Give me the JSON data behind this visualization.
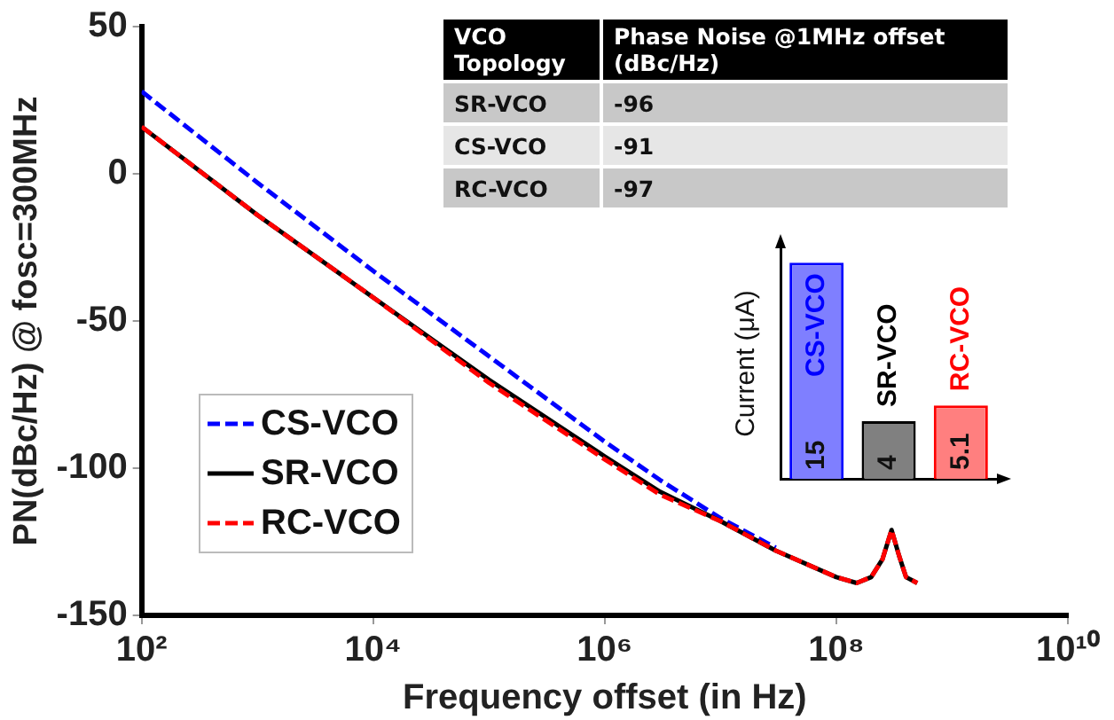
{
  "chart_data": [
    {
      "type": "line",
      "xlabel": "Frequency offset (in Hz)",
      "ylabel": "PN(dBc/Hz) @ fosc=300MHz",
      "log": "x",
      "xlim": [
        100,
        10000000000
      ],
      "xticks": [
        {
          "value": 100,
          "label": "10²"
        },
        {
          "value": 10000,
          "label": "10⁴"
        },
        {
          "value": 1000000,
          "label": "10⁶"
        },
        {
          "value": 100000000,
          "label": "10⁸"
        },
        {
          "value": 10000000000,
          "label": "10¹⁰"
        }
      ],
      "ylim": [
        -150,
        50
      ],
      "yticks": [
        -150,
        -100,
        -50,
        0,
        50
      ],
      "grid": false,
      "legend": "bottom left",
      "series": [
        {
          "name": "CS-VCO",
          "color": "#0000ff",
          "line_style": "dashed",
          "x": [
            100,
            1000,
            10000,
            100000,
            1000000,
            3000000,
            10000000,
            30000000
          ],
          "values": [
            28,
            -3,
            -33,
            -62,
            -91,
            -104,
            -117,
            -127
          ]
        },
        {
          "name": "SR-VCO",
          "color": "#000000",
          "line_style": "solid",
          "x": [
            100,
            1000,
            10000,
            100000,
            1000000,
            3000000,
            10000000,
            30000000,
            100000000,
            150000000,
            200000000,
            250000000,
            300000000,
            350000000,
            400000000,
            500000000
          ],
          "values": [
            16,
            -14,
            -42,
            -70,
            -96,
            -108,
            -118,
            -128,
            -137,
            -139,
            -137,
            -131,
            -121,
            -130,
            -137,
            -139
          ]
        },
        {
          "name": "RC-VCO",
          "color": "#ff0000",
          "line_style": "dashed",
          "x": [
            100,
            1000,
            10000,
            100000,
            1000000,
            3000000,
            10000000,
            30000000,
            100000000,
            150000000,
            200000000,
            250000000,
            300000000,
            350000000,
            400000000,
            500000000
          ],
          "values": [
            16,
            -14,
            -42,
            -71,
            -97,
            -109,
            -118,
            -128,
            -137,
            -139,
            -137,
            -131,
            -121,
            -130,
            -137,
            -139
          ]
        }
      ]
    },
    {
      "type": "bar",
      "ylabel": "Current (μA)",
      "categories": [
        "CS-VCO",
        "SR-VCO",
        "RC-VCO"
      ],
      "values": [
        15,
        4,
        5.1
      ],
      "colors": [
        "#7f7fff",
        "#808080",
        "#ff7f7f"
      ],
      "data_labels": true
    },
    {
      "type": "other",
      "xlabel": "VCO Topology",
      "ylabel": "Phase Noise @1MHz offset (dBc/Hz)",
      "categories": [
        "SR-VCO",
        "CS-VCO",
        "RC-VCO"
      ],
      "values": [
        -96,
        -91,
        -97
      ],
      "data_labels": true
    }
  ]
}
